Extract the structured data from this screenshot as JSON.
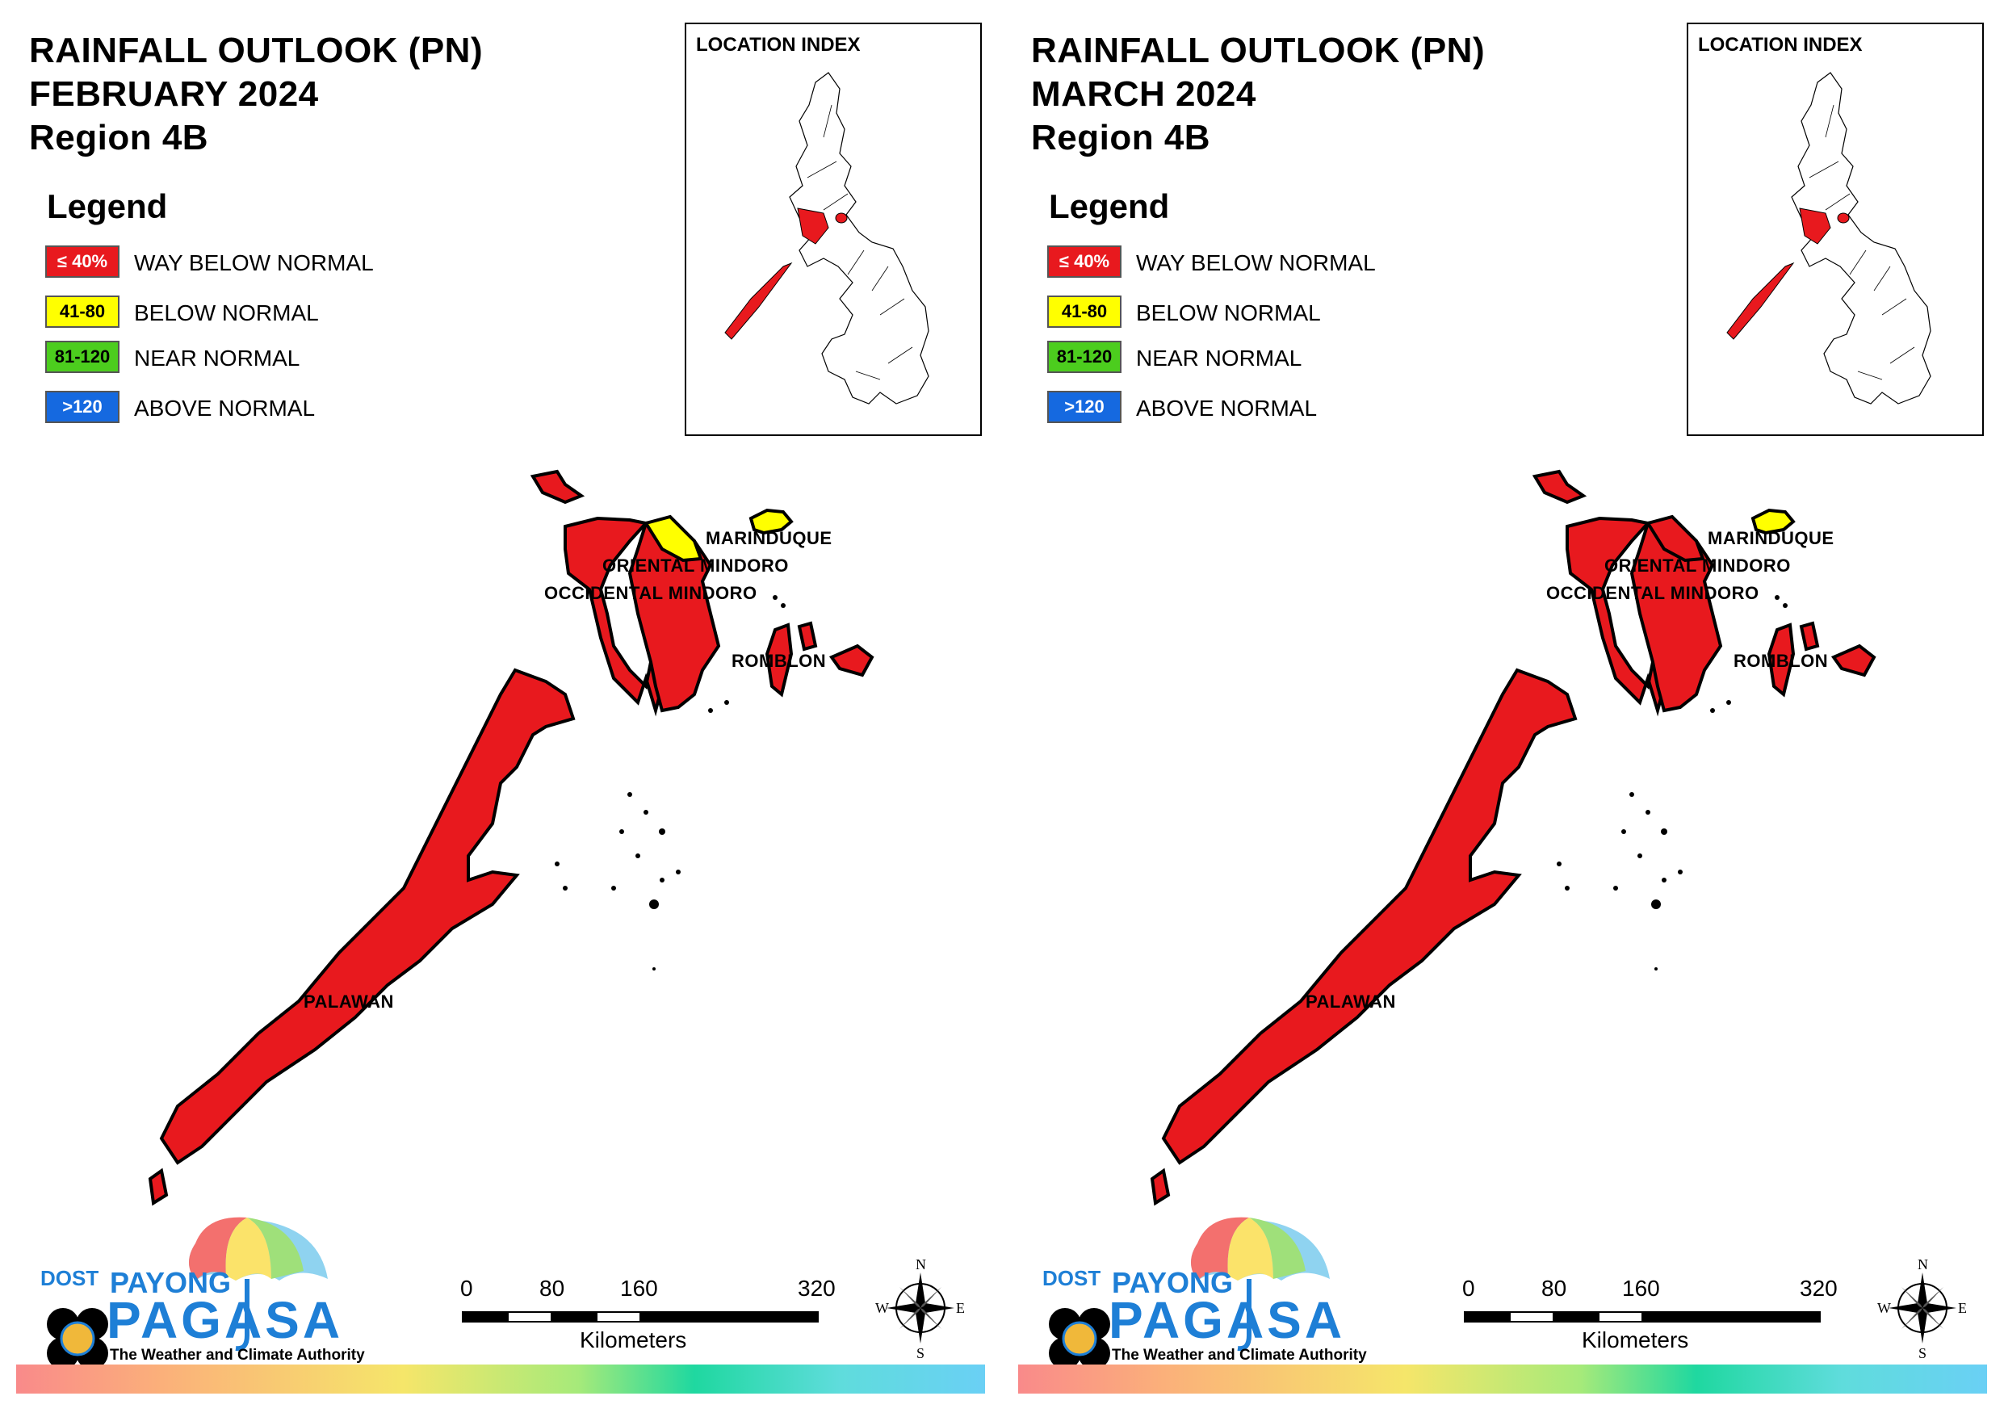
{
  "panels": [
    {
      "title_line1": "RAINFALL OUTLOOK (PN)",
      "title_line2": "FEBRUARY 2024",
      "title_line3": "Region 4B",
      "legend_title": "Legend",
      "legend": [
        {
          "swatch": "≤ 40%",
          "label": "WAY BELOW NORMAL",
          "color": "#e8191e",
          "text_color": "#ffffff"
        },
        {
          "swatch": "41-80",
          "label": "BELOW NORMAL",
          "color": "#ffff00",
          "text_color": "#000000"
        },
        {
          "swatch": "81-120",
          "label": "NEAR NORMAL",
          "color": "#4ccd1e",
          "text_color": "#000000"
        },
        {
          "swatch": ">120",
          "label": "ABOVE NORMAL",
          "color": "#1569e0",
          "text_color": "#ffffff"
        }
      ],
      "location_index_title": "LOCATION INDEX",
      "places": {
        "marinduque": "MARINDUQUE",
        "oriental_mindoro": "ORIENTAL MINDORO",
        "occidental_mindoro": "OCCIDENTAL MINDORO",
        "romblon": "ROMBLON",
        "palawan": "PALAWAN"
      },
      "province_category": {
        "marinduque": "BELOW NORMAL",
        "oriental_mindoro_north": "BELOW NORMAL",
        "oriental_mindoro": "WAY BELOW NORMAL",
        "occidental_mindoro": "WAY BELOW NORMAL",
        "romblon": "WAY BELOW NORMAL",
        "palawan": "WAY BELOW NORMAL"
      },
      "scale": {
        "ticks": [
          "0",
          "80",
          "160",
          "320"
        ],
        "unit": "Kilometers"
      },
      "compass": {
        "n": "N",
        "e": "E",
        "s": "S",
        "w": "W"
      },
      "logo": {
        "dost": "DOST",
        "payong": "PAYONG",
        "pagasa": "PAGASA",
        "tagline": "The Weather and Climate Authority"
      }
    },
    {
      "title_line1": "RAINFALL OUTLOOK (PN)",
      "title_line2": "MARCH 2024",
      "title_line3": "Region 4B",
      "legend_title": "Legend",
      "legend": [
        {
          "swatch": "≤ 40%",
          "label": "WAY BELOW NORMAL",
          "color": "#e8191e",
          "text_color": "#ffffff"
        },
        {
          "swatch": "41-80",
          "label": "BELOW NORMAL",
          "color": "#ffff00",
          "text_color": "#000000"
        },
        {
          "swatch": "81-120",
          "label": "NEAR NORMAL",
          "color": "#4ccd1e",
          "text_color": "#000000"
        },
        {
          "swatch": ">120",
          "label": "ABOVE NORMAL",
          "color": "#1569e0",
          "text_color": "#ffffff"
        }
      ],
      "location_index_title": "LOCATION INDEX",
      "places": {
        "marinduque": "MARINDUQUE",
        "oriental_mindoro": "ORIENTAL MINDORO",
        "occidental_mindoro": "OCCIDENTAL MINDORO",
        "romblon": "ROMBLON",
        "palawan": "PALAWAN"
      },
      "province_category": {
        "marinduque": "BELOW NORMAL",
        "oriental_mindoro_north": "WAY BELOW NORMAL",
        "oriental_mindoro": "WAY BELOW NORMAL",
        "occidental_mindoro": "WAY BELOW NORMAL",
        "romblon": "WAY BELOW NORMAL",
        "palawan": "WAY BELOW NORMAL"
      },
      "scale": {
        "ticks": [
          "0",
          "80",
          "160",
          "320"
        ],
        "unit": "Kilometers"
      },
      "compass": {
        "n": "N",
        "e": "E",
        "s": "S",
        "w": "W"
      },
      "logo": {
        "dost": "DOST",
        "payong": "PAYONG",
        "pagasa": "PAGASA",
        "tagline": "The Weather and Climate Authority"
      }
    }
  ]
}
